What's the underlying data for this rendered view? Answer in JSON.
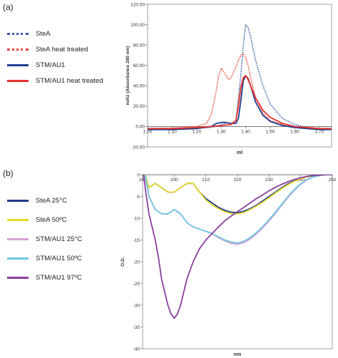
{
  "panels": [
    {
      "label": "(a)"
    },
    {
      "label": "(b)"
    }
  ],
  "chart_data": [
    {
      "type": "line",
      "panel": "(a)",
      "title": "",
      "xlabel": "ml",
      "ylabel": "mAU (Absorbance 280 nm)",
      "xlim": [
        1.0,
        1.75
      ],
      "ylim": [
        -20,
        120
      ],
      "x_ticks": [
        "1.00",
        "1.10",
        "1.20",
        "1.30",
        "1.40",
        "1.50",
        "1.60",
        "1.70"
      ],
      "y_ticks": [
        "-20.00",
        "0.00",
        "20.00",
        "40.00",
        "60.00",
        "80.00",
        "100.00",
        "120.00"
      ],
      "grid": false,
      "legend_position": "left",
      "series": [
        {
          "name": "SteA",
          "color": "#3a5ba8",
          "style": "dotted",
          "x": [
            1.0,
            1.1,
            1.2,
            1.25,
            1.28,
            1.3,
            1.32,
            1.34,
            1.36,
            1.38,
            1.39,
            1.4,
            1.41,
            1.42,
            1.44,
            1.47,
            1.5,
            1.55,
            1.6,
            1.65,
            1.7,
            1.75
          ],
          "y": [
            -2,
            -2,
            -1.5,
            -1,
            0,
            2,
            3.5,
            3,
            5,
            50,
            80,
            100,
            97,
            88,
            65,
            40,
            22,
            8,
            2,
            -1,
            -2,
            -2
          ]
        },
        {
          "name": "SteA heat treated",
          "color": "#e8463c",
          "style": "dotted",
          "x": [
            1.0,
            1.1,
            1.2,
            1.24,
            1.26,
            1.28,
            1.29,
            1.3,
            1.31,
            1.32,
            1.33,
            1.34,
            1.36,
            1.37,
            1.38,
            1.39,
            1.4,
            1.41,
            1.42,
            1.44,
            1.47,
            1.5,
            1.55,
            1.6,
            1.65,
            1.7,
            1.75
          ],
          "y": [
            -2,
            -1.5,
            0,
            3,
            12,
            35,
            50,
            57,
            54,
            50,
            46,
            48,
            58,
            65,
            70,
            71,
            68,
            60,
            48,
            28,
            13,
            6,
            2,
            0,
            -1,
            -2,
            -2
          ]
        },
        {
          "name": "STM/AU1",
          "color": "#223f8f",
          "style": "solid",
          "x": [
            1.0,
            1.1,
            1.2,
            1.26,
            1.28,
            1.3,
            1.32,
            1.34,
            1.36,
            1.37,
            1.38,
            1.39,
            1.4,
            1.41,
            1.42,
            1.44,
            1.47,
            1.5,
            1.55,
            1.6,
            1.65,
            1.7,
            1.75
          ],
          "y": [
            -3,
            -3,
            -2,
            0,
            3,
            4,
            4,
            3,
            3,
            8,
            25,
            45,
            50,
            47,
            40,
            24,
            11,
            5,
            1,
            -1,
            -2,
            -3,
            -3
          ]
        },
        {
          "name": "STM/AU1 heat treated",
          "color": "#e8302a",
          "style": "solid",
          "x": [
            1.0,
            1.1,
            1.2,
            1.26,
            1.3,
            1.34,
            1.36,
            1.37,
            1.38,
            1.39,
            1.4,
            1.41,
            1.42,
            1.44,
            1.47,
            1.5,
            1.55,
            1.6,
            1.65,
            1.7,
            1.75
          ],
          "y": [
            -2,
            -2,
            -1,
            0,
            1,
            2,
            6,
            20,
            38,
            48,
            50,
            46,
            40,
            28,
            16,
            9,
            3,
            0,
            -1,
            -2,
            -2
          ]
        }
      ]
    },
    {
      "type": "line",
      "panel": "(b)",
      "title": "",
      "xlabel": "nm",
      "ylabel": "O.D.",
      "xlim": [
        190,
        250
      ],
      "ylim": [
        -40,
        0
      ],
      "x_ticks": [
        "190",
        "200",
        "210",
        "220",
        "230",
        "240",
        "250"
      ],
      "y_ticks": [
        "0",
        "-5",
        "-10",
        "-15",
        "-20",
        "-25",
        "-30",
        "-35",
        "-40"
      ],
      "grid": false,
      "legend_position": "left",
      "series": [
        {
          "name": "SteA 25°C",
          "color": "#1f3c88",
          "x": [
            190,
            192,
            194,
            196,
            198,
            200,
            202,
            204,
            206,
            208,
            210,
            212,
            214,
            216,
            218,
            220,
            222,
            224,
            226,
            228,
            230,
            232,
            234,
            236,
            238,
            240,
            242,
            244,
            246,
            248,
            250
          ],
          "y": [
            2,
            -3,
            -2,
            -3,
            -4,
            -4,
            -3,
            -2,
            -2,
            -4,
            -5.5,
            -6.5,
            -7.5,
            -8.2,
            -8.6,
            -8.7,
            -8.4,
            -7.8,
            -7.0,
            -6.0,
            -5.0,
            -4.0,
            -3.0,
            -2.1,
            -1.4,
            -0.8,
            -0.4,
            -0.2,
            -0.1,
            0,
            0
          ]
        },
        {
          "name": "SteA 50ºC",
          "color": "#e8d92a",
          "x": [
            190,
            192,
            194,
            196,
            198,
            200,
            202,
            204,
            206,
            208,
            210,
            212,
            214,
            216,
            218,
            220,
            222,
            224,
            226,
            228,
            230,
            232,
            234,
            236,
            238,
            240,
            242,
            244,
            246,
            248,
            250
          ],
          "y": [
            2,
            -3,
            -2,
            -3,
            -4,
            -4,
            -3,
            -2,
            -2,
            -4,
            -5.8,
            -7.0,
            -7.8,
            -8.5,
            -8.9,
            -9.0,
            -8.7,
            -8.0,
            -7.2,
            -6.3,
            -5.3,
            -4.2,
            -3.2,
            -2.3,
            -1.5,
            -0.9,
            -0.5,
            -0.3,
            -0.1,
            0,
            0
          ]
        },
        {
          "name": "STM/AU1 25°C",
          "color": "#d9a0d4",
          "x": [
            190,
            192,
            194,
            196,
            198,
            200,
            202,
            204,
            206,
            208,
            210,
            212,
            214,
            216,
            218,
            220,
            222,
            224,
            226,
            228,
            230,
            232,
            234,
            236,
            238,
            240,
            242,
            244,
            246,
            248,
            250
          ],
          "y": [
            3,
            -5,
            -8,
            -9,
            -9,
            -8,
            -9,
            -11,
            -12,
            -12.5,
            -13,
            -13.5,
            -14.5,
            -15.2,
            -15.8,
            -16.0,
            -15.6,
            -14.8,
            -13.6,
            -12.2,
            -10.6,
            -8.9,
            -7.0,
            -5.2,
            -3.6,
            -2.2,
            -1.2,
            -0.5,
            -0.2,
            0,
            0
          ]
        },
        {
          "name": "STM/AU1 50ºC",
          "color": "#6ec6e0",
          "x": [
            190,
            192,
            194,
            196,
            198,
            200,
            202,
            204,
            206,
            208,
            210,
            212,
            214,
            216,
            218,
            220,
            222,
            224,
            226,
            228,
            230,
            232,
            234,
            236,
            238,
            240,
            242,
            244,
            246,
            248,
            250
          ],
          "y": [
            3,
            -5,
            -8,
            -9,
            -9,
            -8,
            -9,
            -11,
            -12,
            -12.5,
            -13,
            -13.5,
            -14.3,
            -15.0,
            -15.5,
            -15.7,
            -15.3,
            -14.5,
            -13.3,
            -11.9,
            -10.3,
            -8.6,
            -6.8,
            -5.0,
            -3.4,
            -2.1,
            -1.1,
            -0.5,
            -0.2,
            0,
            0
          ]
        },
        {
          "name": "STM/AU1 97ºC",
          "color": "#8b3f9e",
          "x": [
            190,
            191,
            192,
            193,
            194,
            195,
            196,
            197,
            198,
            199,
            200,
            201,
            202,
            203,
            204,
            206,
            208,
            210,
            212,
            214,
            216,
            218,
            220,
            222,
            224,
            226,
            228,
            230,
            232,
            234,
            236,
            238,
            240,
            242,
            244,
            246,
            248,
            250
          ],
          "y": [
            2,
            -4,
            -9,
            -12,
            -15,
            -19,
            -24,
            -27,
            -30,
            -32,
            -33,
            -32,
            -30,
            -27,
            -24,
            -20,
            -17,
            -15,
            -13.5,
            -12,
            -10.6,
            -9.5,
            -8.5,
            -7.5,
            -6.5,
            -5.5,
            -4.6,
            -3.7,
            -2.9,
            -2.2,
            -1.6,
            -1.1,
            -0.7,
            -0.4,
            -0.2,
            -0.1,
            0,
            0
          ]
        }
      ]
    }
  ]
}
